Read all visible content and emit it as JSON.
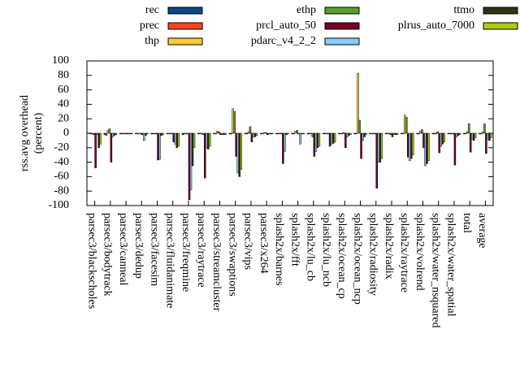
{
  "chart_data": {
    "type": "bar",
    "y_label": [
      "rss.avg overhead",
      "(percent)"
    ],
    "categories": [
      "parsec3/blackscholes",
      "parsec3/bodytrack",
      "parsec3/canneal",
      "parsec3/dedup",
      "parsec3/facesim",
      "parsec3/fluidanimate",
      "parsec3/freqmine",
      "parsec3/raytrace",
      "parsec3/streamcluster",
      "parsec3/swaptions",
      "parsec3/vips",
      "parsec3/x264",
      "splash2x/barnes",
      "splash2x/fft",
      "splash2x/lu_cb",
      "splash2x/lu_ncb",
      "splash2x/ocean_cp",
      "splash2x/ocean_ncp",
      "splash2x/radiosity",
      "splash2x/radix",
      "splash2x/raytrace",
      "splash2x/volrend",
      "splash2x/water_nsquared",
      "splash2x/water_spatial",
      "total",
      "average"
    ],
    "series": [
      {
        "name": "rec",
        "color": "#0b4a86",
        "values": [
          0,
          -2,
          -1,
          -1,
          -1,
          -1,
          -2,
          -1,
          -1,
          -1,
          -1,
          -1,
          -1,
          -1,
          -1,
          -1,
          -1,
          -1,
          -1,
          -1,
          -1,
          -1,
          -1,
          -1,
          -1,
          -1
        ]
      },
      {
        "name": "prec",
        "color": "#ff4422",
        "values": [
          -1,
          -3,
          -1,
          -1,
          -1,
          -1,
          -1,
          -1,
          -1,
          -1,
          -1,
          -1,
          -1,
          -1,
          -1,
          -1,
          -1,
          -1,
          -1,
          -1,
          -1,
          -1,
          -1,
          -1,
          -1,
          -1
        ]
      },
      {
        "name": "thp",
        "color": "#ffcc33",
        "values": [
          -1,
          4,
          -1,
          -1,
          -1,
          -1,
          -1,
          -1,
          3,
          34,
          2,
          1,
          -1,
          3,
          -1,
          -1,
          -1,
          83,
          -1,
          -1,
          25,
          3,
          -1,
          -1,
          2,
          2
        ]
      },
      {
        "name": "ethp",
        "color": "#55a02a",
        "values": [
          -2,
          6,
          -1,
          -1,
          -1,
          -1,
          -1,
          -2,
          2,
          30,
          9,
          1,
          -1,
          4,
          -5,
          -1,
          1,
          18,
          -1,
          -2,
          22,
          5,
          2,
          -1,
          13,
          13
        ]
      },
      {
        "name": "prcl_auto_50",
        "color": "#7a0020",
        "values": [
          -48,
          -40,
          -1,
          -2,
          -37,
          -12,
          -92,
          -62,
          -2,
          -32,
          -12,
          -2,
          -42,
          -1,
          -32,
          -18,
          -20,
          -35,
          -76,
          -5,
          -33,
          -20,
          -27,
          -44,
          -26,
          -28
        ]
      },
      {
        "name": "pdarc_v4_2_2",
        "color": "#88ccff",
        "values": [
          -2,
          -5,
          -1,
          -10,
          -36,
          -15,
          -78,
          -20,
          -2,
          -55,
          -5,
          -1,
          -25,
          -15,
          -25,
          -15,
          -5,
          -10,
          -40,
          -2,
          -38,
          -45,
          -18,
          -5,
          -8,
          -8
        ]
      },
      {
        "name": "ttmo",
        "color": "#333311",
        "values": [
          -20,
          -3,
          -1,
          -3,
          -3,
          -20,
          -45,
          -22,
          -2,
          -60,
          -5,
          -1,
          -2,
          -1,
          -20,
          -14,
          -3,
          -5,
          -40,
          -2,
          -35,
          -42,
          -15,
          -3,
          -10,
          -10
        ]
      },
      {
        "name": "plrus_auto_7000",
        "color": "#aacc11",
        "values": [
          -15,
          -2,
          -1,
          -1,
          -2,
          -18,
          -20,
          -18,
          -2,
          -50,
          -3,
          -1,
          -1,
          -1,
          -18,
          -12,
          -2,
          -2,
          -35,
          -2,
          -30,
          -38,
          -12,
          -2,
          -6,
          -6
        ]
      }
    ],
    "ylim": [
      -100,
      100
    ],
    "yticks": [
      -100,
      -80,
      -60,
      -40,
      -20,
      0,
      20,
      40,
      60,
      80,
      100
    ]
  }
}
